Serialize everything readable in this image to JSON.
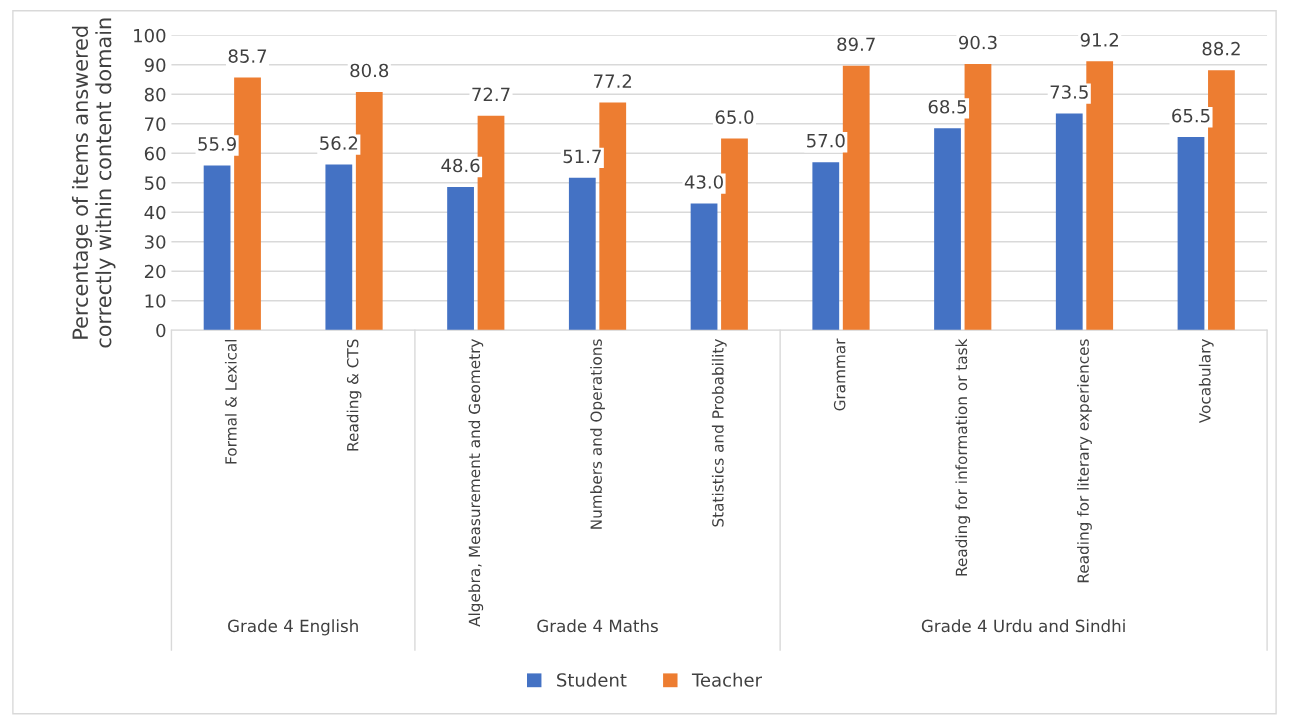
{
  "chart_data": {
    "type": "bar",
    "ylabel": "Percentage of items answered correctly within content domain",
    "categories": [
      "Formal & Lexical",
      "Reading & CTS",
      "Algebra, Measurement and Geometry",
      "Numbers and Operations",
      "Statistics and Probability",
      "Grammar",
      "Reading for information or task",
      "Reading for literary experiences",
      "Vocabulary"
    ],
    "series": [
      {
        "name": "Student",
        "color": "#4472c4",
        "values": [
          55.9,
          56.2,
          48.6,
          51.7,
          43.0,
          57.0,
          68.5,
          73.5,
          65.5
        ],
        "value_labels": [
          "55.9",
          "56.2",
          "48.6",
          "51.7",
          "43.0",
          "57.0",
          "68.5",
          "73.5",
          "65.5"
        ]
      },
      {
        "name": "Teacher",
        "color": "#ed7d31",
        "values": [
          85.7,
          80.8,
          72.7,
          77.2,
          65.0,
          89.7,
          90.3,
          91.2,
          88.2
        ],
        "value_labels": [
          "85.7",
          "80.8",
          "72.7",
          "77.2",
          "65.0",
          "89.7",
          "90.3",
          "91.2",
          "88.2"
        ]
      }
    ],
    "annotations": [
      "Grade 4 English",
      "Grade 4 Maths",
      "Grade 4 Urdu and Sindhi"
    ],
    "ylim": [
      0,
      100
    ],
    "yticks": [
      0,
      10,
      20,
      30,
      40,
      50,
      60,
      70,
      80,
      90,
      100
    ],
    "grid": "y",
    "legend": "bottom"
  }
}
